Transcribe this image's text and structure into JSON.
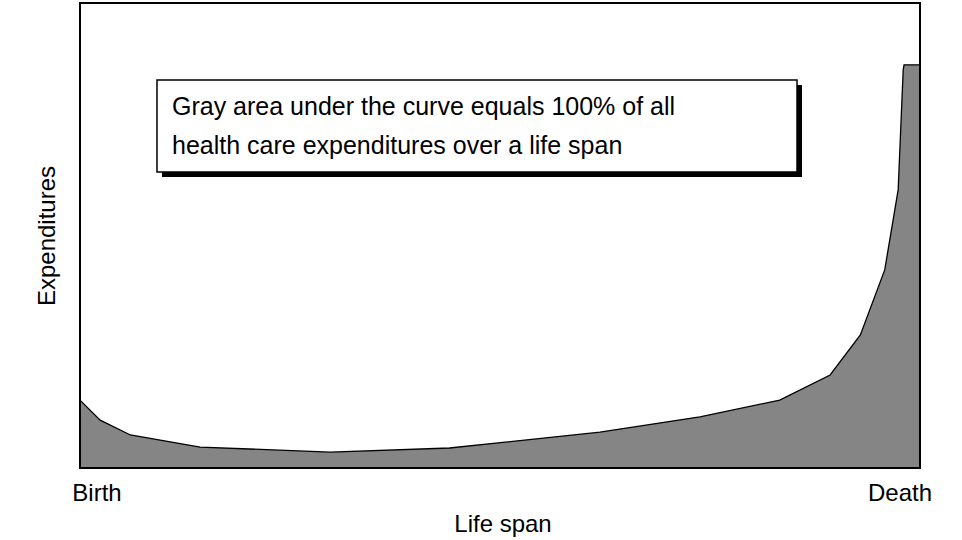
{
  "chart_data": {
    "type": "area",
    "x_label": "Life span",
    "y_label": "Expenditures",
    "annotations": [
      "Gray area under the curve equals 100% of all",
      "health care expenditures over a life span"
    ],
    "x": [
      0,
      2.4,
      6,
      14.3,
      29.8,
      44,
      61.9,
      73.8,
      83.3,
      89.3,
      92.9,
      95.8,
      97.4,
      98,
      98.1,
      100
    ],
    "values": [
      14.6,
      10.3,
      7.1,
      4.5,
      3.4,
      4.3,
      7.7,
      11,
      14.6,
      20,
      28.6,
      42.6,
      59.8,
      85.6,
      86.7,
      86.7
    ],
    "color": "#858585",
    "xlim": [
      0,
      100
    ],
    "ylim": [
      0,
      100
    ],
    "xticks": [
      {
        "value": 0,
        "label": "Birth"
      },
      {
        "value": 100,
        "label": "Death"
      }
    ],
    "tick_labels": "x",
    "grid": false
  }
}
